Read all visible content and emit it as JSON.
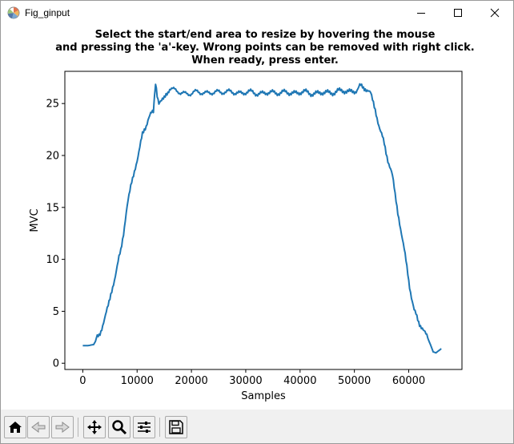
{
  "window": {
    "title": "Fig_ginput",
    "controls": [
      "minimize-icon",
      "maximize-icon",
      "close-icon"
    ]
  },
  "figure": {
    "title_lines": [
      "Select the start/end area to resize by hovering the mouse",
      "and pressing the 'a'-key. Wrong points can be removed with right click.",
      "When ready, press enter."
    ]
  },
  "toolbar": {
    "buttons": [
      "home-icon",
      "back-icon",
      "forward-icon",
      "pan-icon",
      "zoom-icon",
      "configure-subplots-icon",
      "save-icon"
    ]
  },
  "colors": {
    "line": "#1f77b4"
  },
  "chart_data": {
    "type": "line",
    "title": "Select the start/end area to resize by hovering the mouse and pressing the 'a'-key. Wrong points can be removed with right click. When ready, press enter.",
    "xlabel": "Samples",
    "ylabel": "MVC",
    "xlim": [
      -3300,
      69800
    ],
    "ylim": [
      -0.6,
      28.1
    ],
    "xticks": [
      0,
      10000,
      20000,
      30000,
      40000,
      50000,
      60000
    ],
    "yticks": [
      0,
      5,
      10,
      15,
      20,
      25
    ],
    "grid": false,
    "series": [
      {
        "x": [
          0,
          1000,
          2000,
          3000,
          4000,
          5000,
          6000,
          7000,
          8000,
          9000,
          10000,
          11000,
          12000,
          13000,
          13400,
          14000,
          15000,
          16000,
          18000,
          20000,
          22000,
          24000,
          26000,
          28000,
          30000,
          32000,
          34000,
          36000,
          38000,
          40000,
          42000,
          44000,
          46000,
          48000,
          50000,
          51000,
          52000,
          53000,
          54000,
          55000,
          56000,
          57000,
          58000,
          59000,
          60000,
          61000,
          62000,
          63000,
          64000,
          64500,
          65000,
          66000
        ],
        "values": [
          1.7,
          1.7,
          1.8,
          2.7,
          4.2,
          6.2,
          8.5,
          10.8,
          14.5,
          17.5,
          19.5,
          22.0,
          23.5,
          24.2,
          27.0,
          25.0,
          25.5,
          26.5,
          26.0,
          26.0,
          26.1,
          26.0,
          26.2,
          26.0,
          26.1,
          26.0,
          26.0,
          26.1,
          26.0,
          26.1,
          26.0,
          26.0,
          26.1,
          26.2,
          26.2,
          26.6,
          26.5,
          26.0,
          24.0,
          22.0,
          20.0,
          18.0,
          14.5,
          11.5,
          8.0,
          5.0,
          3.8,
          3.0,
          1.8,
          1.1,
          1.0,
          1.4
        ]
      }
    ]
  }
}
